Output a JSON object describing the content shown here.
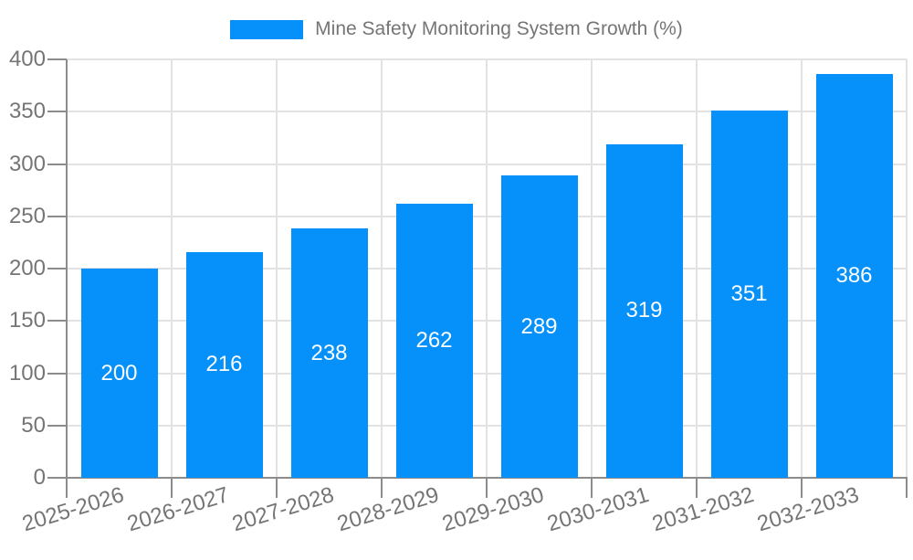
{
  "legend": {
    "items": [
      {
        "label": "Mine Safety Monitoring System Growth (%)",
        "color": "#0590fa"
      }
    ]
  },
  "chart_data": {
    "type": "bar",
    "title": "Mine Safety Monitoring System Growth (%)",
    "categories": [
      "2025-2026",
      "2026-2027",
      "2027-2028",
      "2028-2029",
      "2029-2030",
      "2030-2031",
      "2031-2032",
      "2032-2033"
    ],
    "values": [
      200,
      216,
      238,
      262,
      289,
      319,
      351,
      386
    ],
    "xlabel": "",
    "ylabel": "",
    "ylim": [
      0,
      400
    ],
    "ytick_step": 50,
    "yticks": [
      0,
      50,
      100,
      150,
      200,
      250,
      300,
      350,
      400
    ],
    "grid": true,
    "legend_position": "top-center",
    "value_labels": "inside-center",
    "xlabel_rotation_deg": -17,
    "colors": {
      "bar": "#0590fa",
      "text": "#757575",
      "axis": "#8c8c8c",
      "grid": "#e2e2e2",
      "value_label": "#ffffff",
      "background": "#ffffff"
    }
  }
}
